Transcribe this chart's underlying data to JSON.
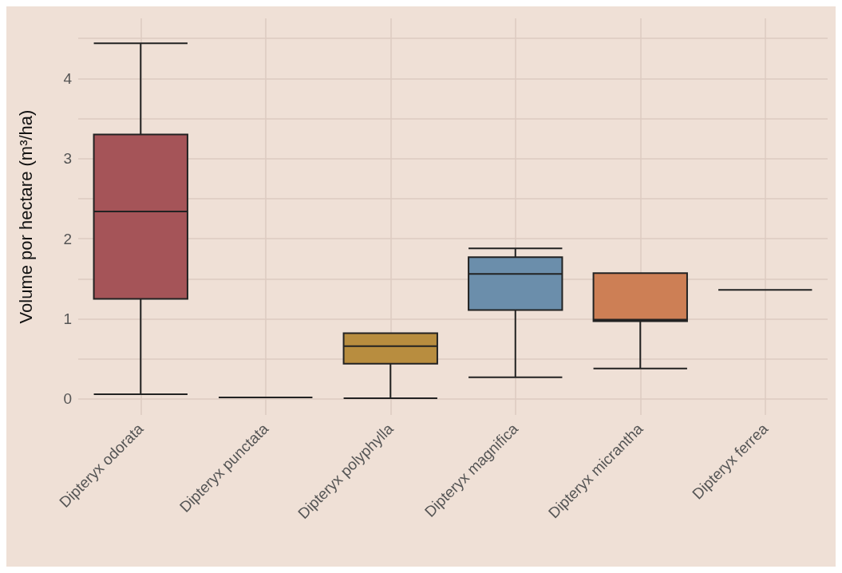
{
  "chart_data": {
    "type": "box",
    "ylabel": "Volume por hectare (m³/ha)",
    "categories": [
      "Dipteryx odorata",
      "Dipteryx punctata",
      "Dipteryx polyphylla",
      "Dipteryx magnifica",
      "Dipteryx micrantha",
      "Dipteryx ferrea"
    ],
    "colors": [
      "#a55458",
      "#222222",
      "#b88d3f",
      "#6b8eab",
      "#cd7f55",
      "#222222"
    ],
    "boxes": [
      {
        "low": 0.06,
        "q1": 1.25,
        "median": 2.34,
        "q3": 3.3,
        "high": 4.44
      },
      {
        "low": 0.02,
        "q1": 0.02,
        "median": 0.02,
        "q3": 0.02,
        "high": 0.02
      },
      {
        "low": 0.01,
        "q1": 0.44,
        "median": 0.66,
        "q3": 0.82,
        "high": 0.82
      },
      {
        "low": 0.27,
        "q1": 1.11,
        "median": 1.56,
        "q3": 1.77,
        "high": 1.88
      },
      {
        "low": 0.38,
        "q1": 0.97,
        "median": 0.99,
        "q3": 1.57,
        "high": 1.57
      },
      {
        "low": 1.36,
        "q1": 1.36,
        "median": 1.36,
        "q3": 1.36,
        "high": 1.36
      }
    ],
    "ylim": [
      -0.2,
      4.75
    ],
    "yticks": [
      0,
      {
        "value": 0.5,
        "label": null
      },
      1,
      {
        "value": 1.5,
        "label": null
      },
      2,
      {
        "value": 2.5,
        "label": null
      },
      3,
      {
        "value": 3.5,
        "label": null
      },
      4,
      {
        "value": 4.5,
        "label": null
      }
    ],
    "grid": true
  }
}
